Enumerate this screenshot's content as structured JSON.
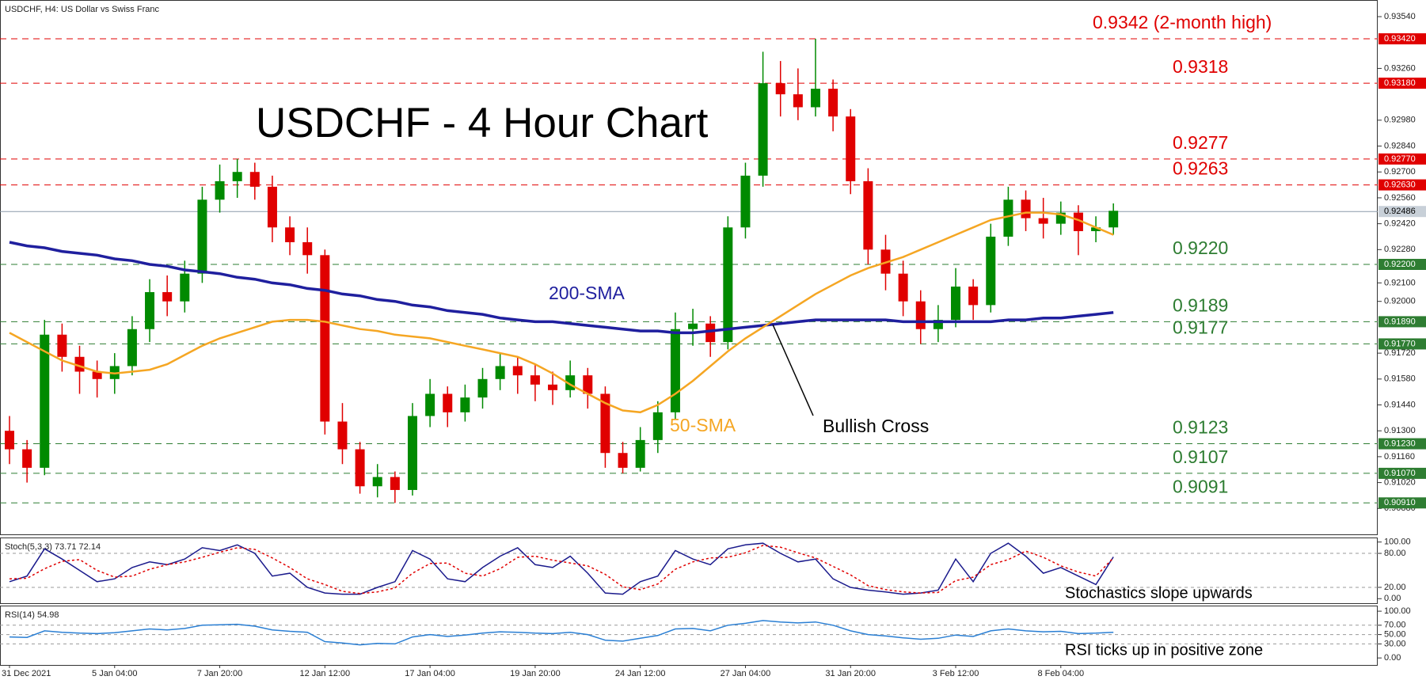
{
  "chart_data": [
    {
      "type": "candlestick",
      "header": "USDCHF, H4:  US Dollar vs Swiss Franc",
      "title": "USDCHF - 4 Hour Chart",
      "categories": [
        "31 Dec 2021",
        null,
        null,
        null,
        null,
        null,
        "5 Jan 04:00",
        null,
        null,
        null,
        null,
        null,
        "7 Jan 20:00",
        null,
        null,
        null,
        null,
        null,
        "12 Jan 12:00",
        null,
        null,
        null,
        null,
        null,
        "17 Jan 04:00",
        null,
        null,
        null,
        null,
        null,
        "19 Jan 20:00",
        null,
        null,
        null,
        null,
        null,
        "24 Jan 12:00",
        null,
        null,
        null,
        null,
        null,
        "27 Jan 04:00",
        null,
        null,
        null,
        null,
        null,
        "31 Jan 20:00",
        null,
        null,
        null,
        null,
        null,
        "3 Feb 12:00",
        null,
        null,
        null,
        null,
        null,
        "8 Feb 04:00",
        null,
        null,
        null
      ],
      "open": [
        0.913,
        0.912,
        0.911,
        0.9182,
        0.917,
        0.9162,
        0.9158,
        0.9165,
        0.9185,
        0.9205,
        0.92,
        0.9215,
        0.9255,
        0.9265,
        0.927,
        0.9262,
        0.924,
        0.9232,
        0.9225,
        0.9135,
        0.912,
        0.91,
        0.9105,
        0.9098,
        0.9138,
        0.915,
        0.914,
        0.9148,
        0.9158,
        0.9165,
        0.916,
        0.9155,
        0.9152,
        0.916,
        0.915,
        0.9118,
        0.911,
        0.9125,
        0.914,
        0.9185,
        0.9188,
        0.9178,
        0.924,
        0.9268,
        0.9318,
        0.9312,
        0.9305,
        0.9315,
        0.93,
        0.9265,
        0.9228,
        0.9215,
        0.92,
        0.9185,
        0.919,
        0.9208,
        0.9198,
        0.9235,
        0.9255,
        0.9245,
        0.9242,
        0.9248,
        0.9238,
        0.924
      ],
      "high": [
        0.9138,
        0.9125,
        0.919,
        0.9188,
        0.9176,
        0.9168,
        0.9172,
        0.9192,
        0.9212,
        0.9214,
        0.9222,
        0.9262,
        0.9274,
        0.9277,
        0.9275,
        0.9268,
        0.9246,
        0.924,
        0.9228,
        0.9145,
        0.9124,
        0.9112,
        0.9108,
        0.9145,
        0.9158,
        0.9154,
        0.9155,
        0.9164,
        0.9172,
        0.917,
        0.9166,
        0.9162,
        0.9168,
        0.9164,
        0.9154,
        0.9124,
        0.9132,
        0.9146,
        0.9194,
        0.9196,
        0.9192,
        0.9246,
        0.9275,
        0.9335,
        0.933,
        0.9326,
        0.9342,
        0.932,
        0.9304,
        0.9272,
        0.9236,
        0.9222,
        0.9206,
        0.9198,
        0.9218,
        0.9212,
        0.9242,
        0.9262,
        0.926,
        0.9256,
        0.9254,
        0.9252,
        0.9246,
        0.9253
      ],
      "low": [
        0.9112,
        0.9102,
        0.9106,
        0.9162,
        0.915,
        0.9148,
        0.915,
        0.916,
        0.9178,
        0.9192,
        0.9194,
        0.921,
        0.9248,
        0.9256,
        0.9255,
        0.9232,
        0.9225,
        0.9215,
        0.9128,
        0.9112,
        0.9096,
        0.9094,
        0.9091,
        0.9095,
        0.9132,
        0.9132,
        0.9135,
        0.9142,
        0.9152,
        0.915,
        0.9146,
        0.9144,
        0.9148,
        0.9142,
        0.911,
        0.9107,
        0.9108,
        0.9118,
        0.9136,
        0.9176,
        0.917,
        0.9174,
        0.9234,
        0.9262,
        0.93,
        0.9298,
        0.93,
        0.9292,
        0.9258,
        0.922,
        0.9206,
        0.9192,
        0.9177,
        0.9178,
        0.9186,
        0.919,
        0.9194,
        0.923,
        0.9238,
        0.9234,
        0.9236,
        0.9225,
        0.9232,
        0.9236
      ],
      "close": [
        0.912,
        0.911,
        0.9182,
        0.917,
        0.9162,
        0.9158,
        0.9165,
        0.9185,
        0.9205,
        0.92,
        0.9215,
        0.9255,
        0.9265,
        0.927,
        0.9262,
        0.924,
        0.9232,
        0.9225,
        0.9135,
        0.912,
        0.91,
        0.9105,
        0.9098,
        0.9138,
        0.915,
        0.914,
        0.9148,
        0.9158,
        0.9165,
        0.916,
        0.9155,
        0.9152,
        0.916,
        0.915,
        0.9118,
        0.911,
        0.9125,
        0.914,
        0.9185,
        0.9188,
        0.9178,
        0.924,
        0.9268,
        0.9318,
        0.9312,
        0.9305,
        0.9315,
        0.93,
        0.9265,
        0.9228,
        0.9215,
        0.92,
        0.9185,
        0.919,
        0.9208,
        0.9198,
        0.9235,
        0.9255,
        0.9245,
        0.9242,
        0.9248,
        0.9238,
        0.924,
        0.9249
      ],
      "up_color": "#008a00",
      "down_color": "#e00000",
      "lines": [
        {
          "name": "200-SMA",
          "color": "#1f1f9e",
          "values": [
            0.9232,
            0.923,
            0.9229,
            0.9227,
            0.9226,
            0.9225,
            0.9223,
            0.9222,
            0.922,
            0.9219,
            0.9217,
            0.9216,
            0.9215,
            0.9213,
            0.9212,
            0.921,
            0.9209,
            0.9207,
            0.9206,
            0.9204,
            0.9203,
            0.9201,
            0.92,
            0.9198,
            0.9197,
            0.9195,
            0.9194,
            0.9193,
            0.9191,
            0.919,
            0.9189,
            0.9189,
            0.9188,
            0.9187,
            0.9186,
            0.9185,
            0.9184,
            0.9184,
            0.9183,
            0.9183,
            0.9184,
            0.9185,
            0.9186,
            0.9187,
            0.9188,
            0.9189,
            0.919,
            0.919,
            0.919,
            0.919,
            0.919,
            0.9189,
            0.9189,
            0.9189,
            0.9189,
            0.9189,
            0.9189,
            0.919,
            0.919,
            0.9191,
            0.9191,
            0.9192,
            0.9193,
            0.9194
          ]
        },
        {
          "name": "50-SMA",
          "color": "#f5a623",
          "values": [
            0.9183,
            0.9178,
            0.9173,
            0.9168,
            0.9165,
            0.9162,
            0.9161,
            0.9162,
            0.9163,
            0.9166,
            0.9171,
            0.9176,
            0.918,
            0.9183,
            0.9186,
            0.9189,
            0.919,
            0.919,
            0.9189,
            0.9187,
            0.9185,
            0.9184,
            0.9182,
            0.9181,
            0.918,
            0.9178,
            0.9176,
            0.9174,
            0.9172,
            0.917,
            0.9166,
            0.9161,
            0.9155,
            0.915,
            0.9145,
            0.9141,
            0.914,
            0.9144,
            0.915,
            0.9157,
            0.9165,
            0.9173,
            0.918,
            0.9186,
            0.9192,
            0.9198,
            0.9204,
            0.9209,
            0.9214,
            0.9218,
            0.9221,
            0.9224,
            0.9228,
            0.9232,
            0.9236,
            0.924,
            0.9244,
            0.9246,
            0.9248,
            0.9248,
            0.9247,
            0.9244,
            0.924,
            0.9236
          ]
        }
      ],
      "levels": [
        {
          "value": 0.9342,
          "label": "0.9342 (2-month high)",
          "tick_label": "0.93420",
          "color": "#e00000"
        },
        {
          "value": 0.9318,
          "label": "0.9318",
          "tick_label": "0.93180",
          "color": "#e00000"
        },
        {
          "value": 0.9277,
          "label": "0.9277",
          "tick_label": "0.92770",
          "color": "#e00000"
        },
        {
          "value": 0.9263,
          "label": "0.9263",
          "tick_label": "0.92630",
          "color": "#e00000"
        },
        {
          "value": 0.922,
          "label": "0.9220",
          "tick_label": "0.92200",
          "color": "#2e7d32"
        },
        {
          "value": 0.9189,
          "label": "0.9189",
          "tick_label": "0.91890",
          "color": "#2e7d32"
        },
        {
          "value": 0.9177,
          "label": "0.9177",
          "tick_label": "0.91770",
          "color": "#2e7d32"
        },
        {
          "value": 0.9123,
          "label": "0.9123",
          "tick_label": "0.91230",
          "color": "#2e7d32"
        },
        {
          "value": 0.9107,
          "label": "0.9107",
          "tick_label": "0.91070",
          "color": "#2e7d32"
        },
        {
          "value": 0.9091,
          "label": "0.9091",
          "tick_label": "0.90910",
          "color": "#2e7d32"
        }
      ],
      "last_price": {
        "value": 0.92486,
        "label": "0.92486"
      },
      "annotations": [
        "Bullish Cross"
      ],
      "ylim": [
        0.9074,
        0.9363
      ],
      "yticks": [
        {
          "value": 0.9354,
          "label": "0.93540"
        },
        {
          "value": 0.9326,
          "label": "0.93260"
        },
        {
          "value": 0.9298,
          "label": "0.92980"
        },
        {
          "value": 0.9284,
          "label": "0.92840"
        },
        {
          "value": 0.927,
          "label": "0.92700"
        },
        {
          "value": 0.9256,
          "label": "0.92560"
        },
        {
          "value": 0.9242,
          "label": "0.92420"
        },
        {
          "value": 0.9228,
          "label": "0.92280"
        },
        {
          "value": 0.921,
          "label": "0.92100"
        },
        {
          "value": 0.92,
          "label": "0.92000"
        },
        {
          "value": 0.9172,
          "label": "0.91720"
        },
        {
          "value": 0.9158,
          "label": "0.91580"
        },
        {
          "value": 0.9144,
          "label": "0.91440"
        },
        {
          "value": 0.913,
          "label": "0.91300"
        },
        {
          "value": 0.9116,
          "label": "0.91160"
        },
        {
          "value": 0.9102,
          "label": "0.91020"
        },
        {
          "value": 0.9088,
          "label": "0.90880"
        }
      ]
    },
    {
      "type": "line",
      "header": "Stoch(5,3,3) 73.71 72.14",
      "annotations": [
        "Stochastics slope upwards"
      ],
      "series": [
        {
          "color": "#1a1a8c",
          "dash": false,
          "values": [
            30,
            40,
            88,
            70,
            50,
            30,
            35,
            55,
            65,
            60,
            70,
            90,
            85,
            95,
            80,
            40,
            45,
            20,
            10,
            8,
            8,
            20,
            30,
            85,
            70,
            35,
            30,
            55,
            75,
            90,
            60,
            55,
            75,
            45,
            10,
            8,
            30,
            40,
            85,
            70,
            60,
            88,
            95,
            98,
            80,
            65,
            70,
            35,
            20,
            15,
            12,
            8,
            10,
            15,
            70,
            30,
            80,
            98,
            75,
            45,
            55,
            40,
            25,
            73.71
          ]
        },
        {
          "color": "#e00000",
          "dash": true,
          "values": [
            35,
            36,
            53,
            66,
            69,
            50,
            38,
            40,
            52,
            60,
            65,
            73,
            82,
            90,
            87,
            72,
            55,
            35,
            25,
            13,
            9,
            12,
            19,
            45,
            62,
            63,
            45,
            40,
            53,
            73,
            75,
            68,
            63,
            58,
            43,
            21,
            16,
            26,
            52,
            65,
            72,
            73,
            81,
            94,
            91,
            81,
            72,
            57,
            42,
            23,
            16,
            12,
            10,
            11,
            32,
            38,
            60,
            69,
            84,
            73,
            58,
            47,
            40,
            72.14
          ]
        }
      ],
      "ylim": [
        -8,
        108
      ],
      "yticks": [
        {
          "value": 100,
          "label": "100.00"
        },
        {
          "value": 80,
          "label": "80.00"
        },
        {
          "value": 20,
          "label": "20.00"
        },
        {
          "value": 0,
          "label": "0.00"
        }
      ]
    },
    {
      "type": "line",
      "header": "RSI(14) 54.98",
      "annotations": [
        "RSI ticks up in positive zone"
      ],
      "series": [
        {
          "color": "#2a7fd4",
          "dash": false,
          "values": [
            45,
            44,
            58,
            55,
            53,
            52,
            54,
            58,
            62,
            60,
            63,
            70,
            71,
            72,
            68,
            60,
            57,
            55,
            35,
            32,
            28,
            31,
            30,
            45,
            50,
            46,
            49,
            53,
            56,
            55,
            53,
            52,
            55,
            50,
            38,
            36,
            42,
            48,
            62,
            63,
            58,
            70,
            74,
            80,
            77,
            75,
            77,
            70,
            58,
            50,
            47,
            43,
            40,
            42,
            49,
            46,
            58,
            62,
            58,
            56,
            57,
            52,
            53,
            54.98
          ]
        }
      ],
      "ylim": [
        -15,
        112
      ],
      "yticks": [
        {
          "value": 100,
          "label": "100.00"
        },
        {
          "value": 70,
          "label": "70.00"
        },
        {
          "value": 50,
          "label": "50.00"
        },
        {
          "value": 30,
          "label": "30.00"
        },
        {
          "value": 0,
          "label": "0.00"
        }
      ]
    }
  ]
}
